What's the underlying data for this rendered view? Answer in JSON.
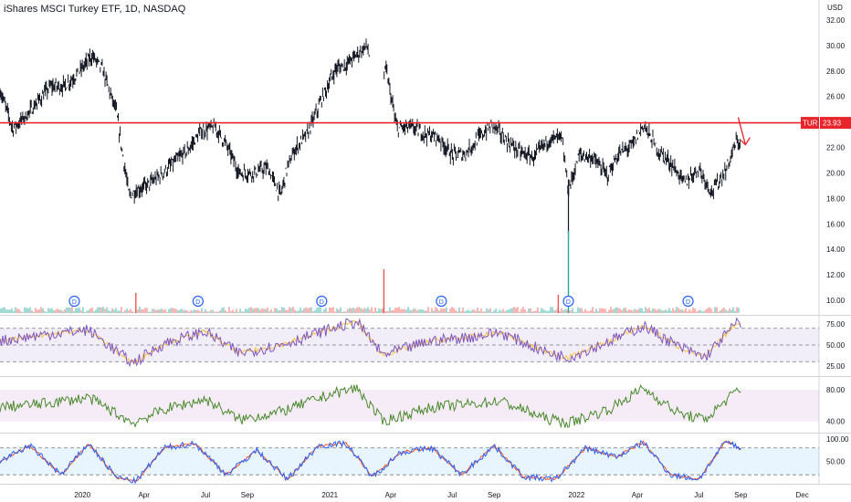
{
  "header": {
    "title": "iShares MSCI Turkey ETF, 1D, NASDAQ",
    "currency": "USD"
  },
  "price_tag": {
    "symbol": "TUR",
    "value": "23.93"
  },
  "colors": {
    "up": "#26a69a",
    "down": "#ef5350",
    "candle": "#131722",
    "line": "#e8252b",
    "rsi": "#7e57c2",
    "rsi_ma": "#f7c64a",
    "green_osc": "#4a8a2c",
    "stoch_k": "#2962ff",
    "stoch_d": "#f4511e",
    "dividend": "#2962ff"
  },
  "chart_data": [
    {
      "type": "candlestick",
      "title": "iShares MSCI Turkey ETF, 1D, NASDAQ",
      "ylabel": "USD",
      "ylim": [
        9,
        33
      ],
      "y_ticks": [
        "32.00",
        "30.00",
        "28.00",
        "26.00",
        "24.00",
        "22.00",
        "20.00",
        "18.00",
        "16.00",
        "14.00",
        "12.00",
        "10.00"
      ],
      "x_ticks": [
        "2020",
        "Apr",
        "Jul",
        "Sep",
        "2021",
        "Apr",
        "Jul",
        "Sep",
        "2022",
        "Apr",
        "Jul",
        "Sep",
        "Dec"
      ],
      "x_tick_dates": [
        "2020-01-01",
        "2020-04-01",
        "2020-07-01",
        "2020-09-01",
        "2021-01-01",
        "2021-04-01",
        "2021-07-01",
        "2021-09-01",
        "2022-01-01",
        "2022-04-01",
        "2022-07-01",
        "2022-09-01",
        "2022-12-01"
      ],
      "series": [
        {
          "x": [
            "2019-09-01",
            "2019-09-20",
            "2019-10-10",
            "2019-10-30",
            "2019-11-15",
            "2019-12-05",
            "2019-12-25",
            "2020-01-15",
            "2020-01-30",
            "2020-02-20",
            "2020-03-10",
            "2020-03-20",
            "2020-04-05",
            "2020-04-25",
            "2020-05-15",
            "2020-06-05",
            "2020-06-25",
            "2020-07-15",
            "2020-08-01",
            "2020-08-20",
            "2020-09-10",
            "2020-10-01",
            "2020-10-20",
            "2020-10-30",
            "2020-11-10",
            "2020-11-30",
            "2020-12-20",
            "2021-01-10",
            "2021-01-25",
            "2021-02-10",
            "2021-02-25",
            "2021-03-10",
            "2021-03-18",
            "2021-03-25",
            "2021-04-10",
            "2021-05-01",
            "2021-05-20",
            "2021-06-10",
            "2021-07-01",
            "2021-07-20",
            "2021-08-10",
            "2021-08-30",
            "2021-09-20",
            "2021-10-10",
            "2021-10-30",
            "2021-11-20",
            "2021-12-10",
            "2021-12-20",
            "2022-01-05",
            "2022-01-25",
            "2022-02-15",
            "2022-03-05",
            "2022-03-25",
            "2022-04-10",
            "2022-05-01",
            "2022-05-20",
            "2022-06-10",
            "2022-07-01",
            "2022-07-20",
            "2022-08-10",
            "2022-08-25"
          ],
          "close": [
            26.5,
            23.5,
            24.5,
            25.8,
            26.8,
            26.8,
            27.8,
            29.2,
            28.2,
            24.8,
            18.2,
            18.6,
            19.0,
            19.8,
            20.8,
            21.8,
            23.3,
            23.6,
            22.2,
            20.0,
            20.0,
            20.4,
            18.2,
            20.4,
            21.8,
            23.2,
            25.8,
            28.2,
            28.5,
            29.3,
            30.0,
            26.8,
            26.5,
            28.2,
            23.5,
            23.6,
            23.1,
            22.8,
            21.4,
            21.5,
            22.8,
            23.8,
            22.5,
            21.6,
            21.2,
            22.6,
            22.8,
            18.6,
            21.4,
            21.2,
            19.8,
            21.5,
            22.2,
            23.8,
            21.8,
            20.8,
            19.2,
            20.4,
            18.5,
            20.2,
            22.4
          ]
        }
      ],
      "reference_line": {
        "value": 23.93,
        "label": "TUR"
      },
      "dividends": [
        "2019-12-20",
        "2020-06-20",
        "2020-12-20",
        "2021-06-15",
        "2021-12-20",
        "2022-06-15"
      ],
      "dividend_label": "D"
    },
    {
      "type": "line",
      "ylim": [
        15,
        85
      ],
      "y_ticks": [
        "75.00",
        "50.00",
        "25.00"
      ],
      "bands": [
        30,
        70
      ],
      "series": [
        {
          "x": [
            "2019-09-01",
            "2019-11-01",
            "2020-01-10",
            "2020-03-15",
            "2020-05-01",
            "2020-07-01",
            "2020-08-20",
            "2020-10-20",
            "2021-01-05",
            "2021-02-10",
            "2021-03-20",
            "2021-06-01",
            "2021-08-01",
            "2021-09-10",
            "2021-11-15",
            "2021-12-20",
            "2022-02-20",
            "2022-04-10",
            "2022-06-01",
            "2022-07-10",
            "2022-08-25"
          ],
          "values": [
            55,
            62,
            68,
            28,
            52,
            66,
            40,
            50,
            70,
            78,
            38,
            55,
            60,
            65,
            42,
            35,
            55,
            73,
            48,
            35,
            76
          ]
        }
      ]
    },
    {
      "type": "line",
      "ylim": [
        28,
        95
      ],
      "y_ticks": [
        "80.00",
        "40.00"
      ],
      "band": [
        40,
        80
      ],
      "series": [
        {
          "x": [
            "2019-09-01",
            "2019-11-01",
            "2020-01-10",
            "2020-03-15",
            "2020-05-01",
            "2020-07-01",
            "2020-08-20",
            "2020-10-20",
            "2021-01-05",
            "2021-02-10",
            "2021-03-20",
            "2021-06-01",
            "2021-08-01",
            "2021-09-10",
            "2021-11-15",
            "2021-12-20",
            "2022-02-20",
            "2022-04-10",
            "2022-06-01",
            "2022-07-10",
            "2022-08-25"
          ],
          "values": [
            58,
            62,
            70,
            38,
            55,
            68,
            42,
            52,
            75,
            82,
            40,
            58,
            62,
            66,
            44,
            38,
            56,
            82,
            50,
            42,
            78
          ]
        }
      ]
    },
    {
      "type": "line",
      "ylim": [
        0,
        110
      ],
      "y_ticks": [
        "100.00",
        "50.00"
      ],
      "bands": [
        20,
        80
      ],
      "series": [
        {
          "x": [
            "2019-09-01",
            "2019-10-15",
            "2019-12-01",
            "2020-01-10",
            "2020-02-20",
            "2020-03-20",
            "2020-05-01",
            "2020-06-15",
            "2020-08-01",
            "2020-09-15",
            "2020-10-30",
            "2020-12-15",
            "2021-01-25",
            "2021-03-05",
            "2021-04-15",
            "2021-06-01",
            "2021-07-15",
            "2021-09-01",
            "2021-10-15",
            "2021-12-01",
            "2022-01-15",
            "2022-03-01",
            "2022-04-10",
            "2022-05-20",
            "2022-07-01",
            "2022-08-10",
            "2022-09-01"
          ],
          "values": [
            50,
            85,
            20,
            90,
            15,
            5,
            80,
            90,
            20,
            75,
            10,
            85,
            90,
            15,
            70,
            80,
            20,
            85,
            15,
            10,
            80,
            60,
            92,
            20,
            10,
            95,
            78
          ]
        }
      ]
    }
  ]
}
